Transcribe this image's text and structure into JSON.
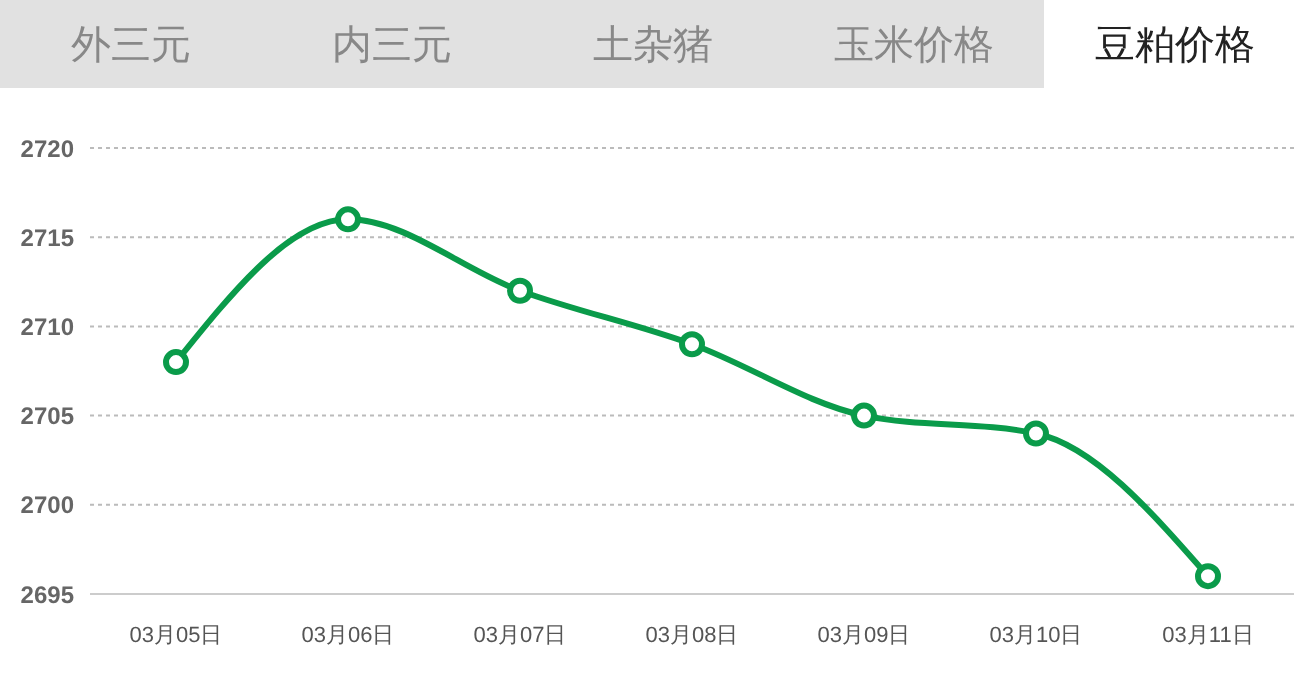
{
  "chart_data": {
    "type": "line",
    "title": "豆粕价格",
    "annotations": [
      "外三元",
      "内三元",
      "土杂猪",
      "玉米价格"
    ],
    "categories": [
      "03月05日",
      "03月06日",
      "03月07日",
      "03月08日",
      "03月09日",
      "03月10日",
      "03月11日"
    ],
    "series": [
      {
        "color": "#0a9b4a",
        "values": [
          2708,
          2716,
          2712,
          2709,
          2705,
          2704,
          2696
        ]
      }
    ],
    "ylim": [
      2695,
      2720
    ],
    "yticks": [
      2695,
      2700,
      2705,
      2710,
      2715,
      2720
    ],
    "grid": "y",
    "legend": false,
    "marker": "circle",
    "line_style": "solid"
  }
}
